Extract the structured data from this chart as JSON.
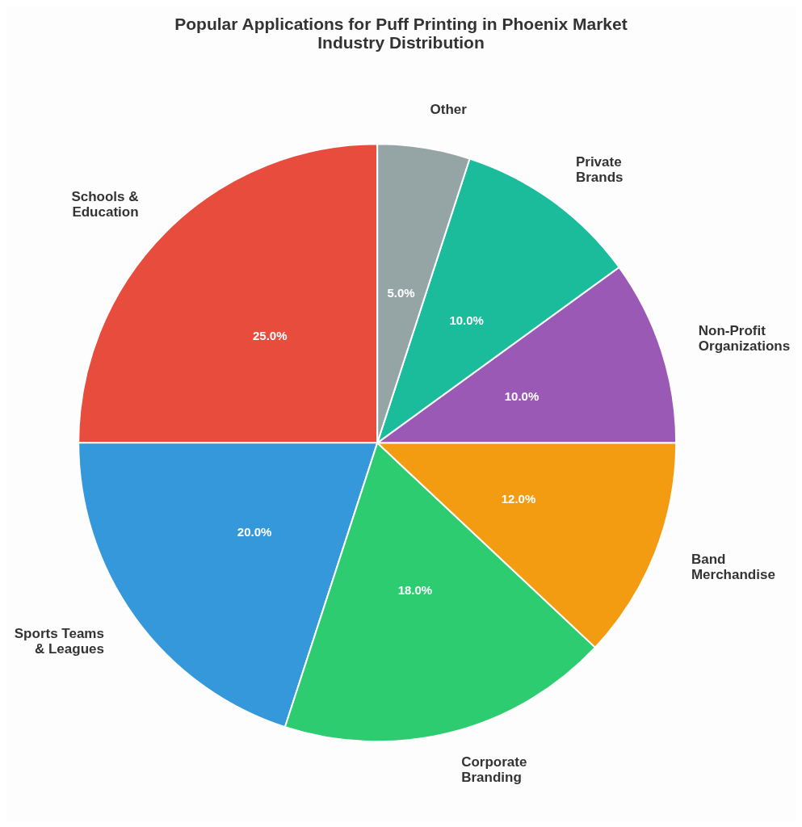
{
  "chart_data": {
    "type": "pie",
    "title": "Popular Applications for Puff Printing in Phoenix Market",
    "subtitle": "Industry Distribution",
    "categories": [
      "Schools & Education",
      "Sports Teams & Leagues",
      "Corporate Branding",
      "Band Merchandise",
      "Non-Profit Organizations",
      "Private Brands",
      "Other"
    ],
    "values": [
      25,
      20,
      18,
      12,
      10,
      10,
      5
    ],
    "colors": [
      "#e74c3c",
      "#3498db",
      "#2ecc71",
      "#f39c12",
      "#9b59b6",
      "#1abc9c",
      "#95a5a6"
    ],
    "value_labels": [
      "25.0%",
      "20.0%",
      "18.0%",
      "12.0%",
      "10.0%",
      "10.0%",
      "5.0%"
    ],
    "legend": false
  }
}
